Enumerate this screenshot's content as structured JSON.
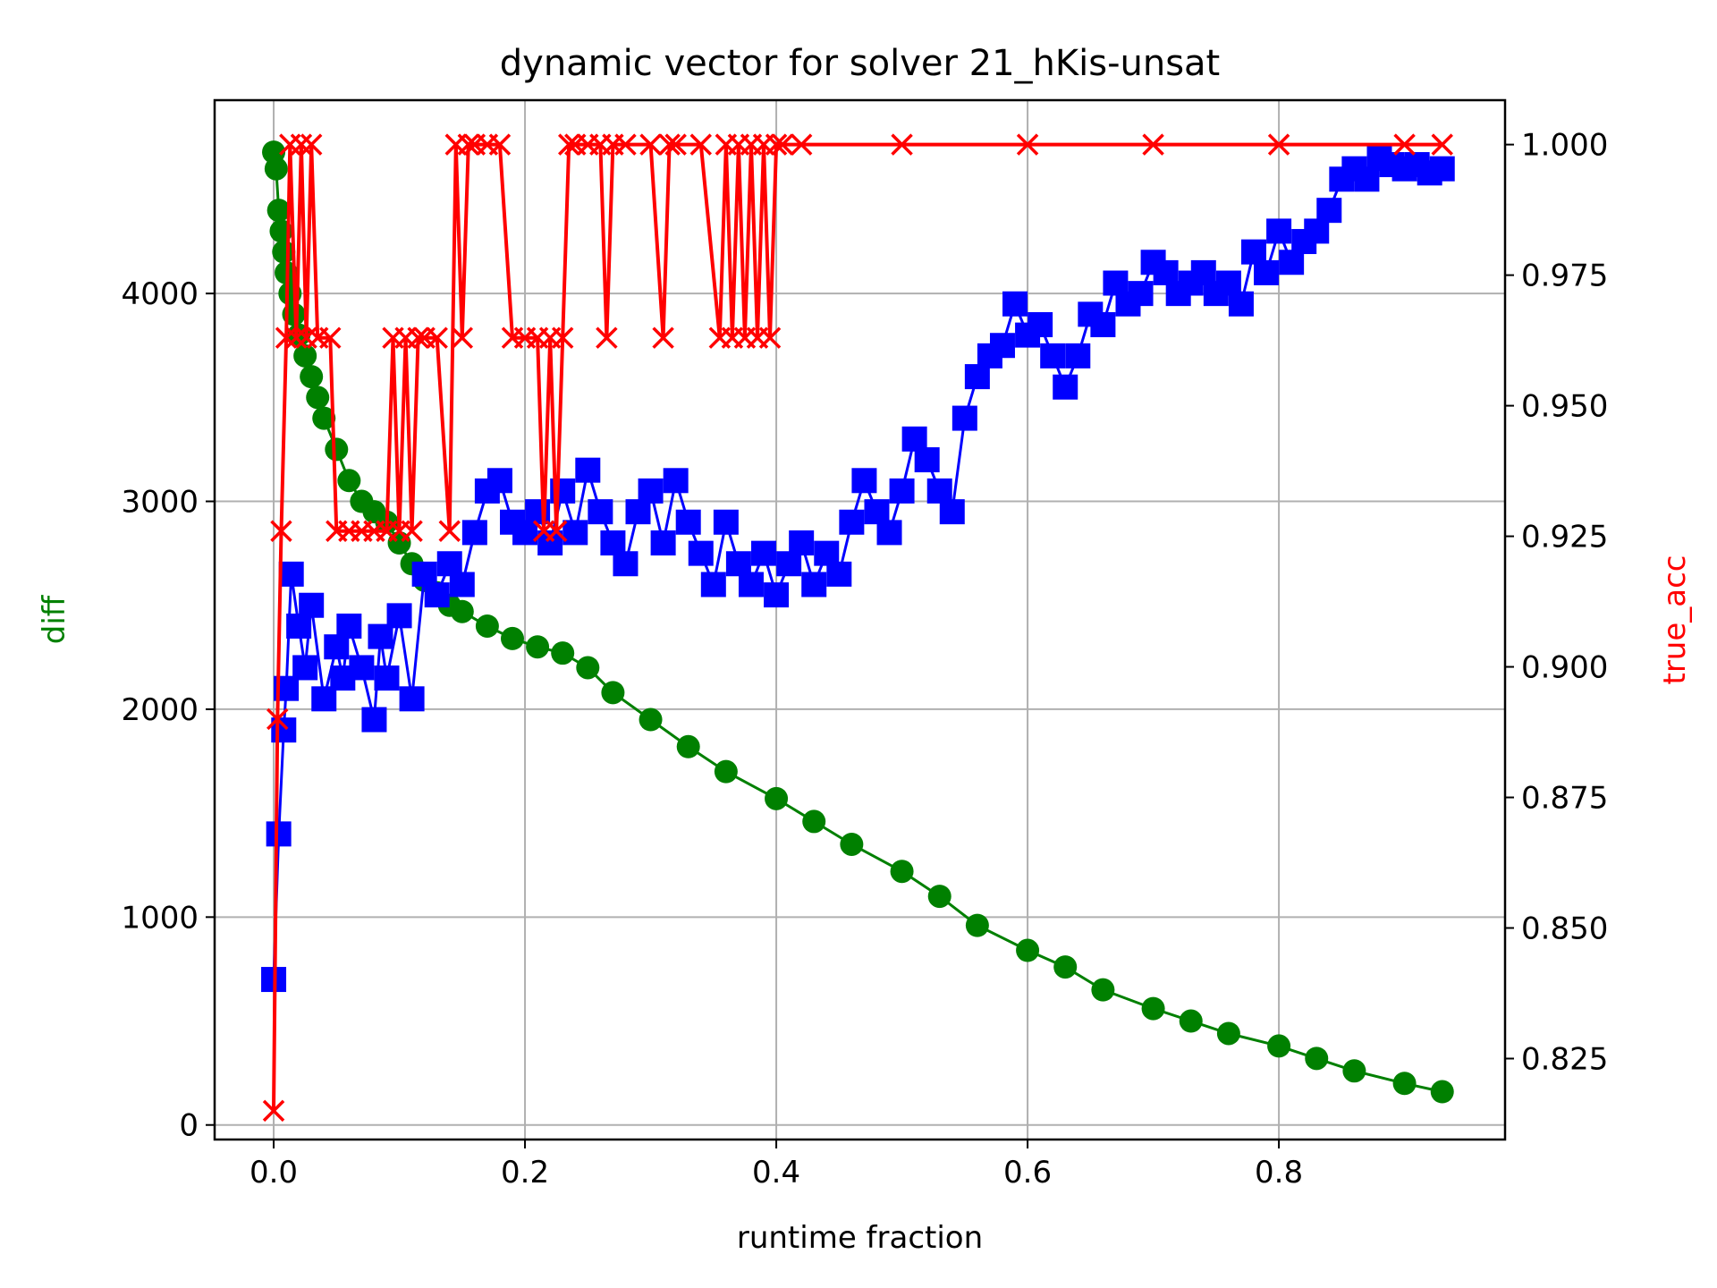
{
  "chart_data": {
    "type": "line",
    "title": "dynamic vector for solver 21_hKis-unsat",
    "xlabel": "runtime fraction",
    "ylabel_left": "diff",
    "ylabel_right": "true_acc",
    "xlim": [
      -0.047,
      0.98
    ],
    "ylim_left": [
      -70,
      4930
    ],
    "ylim_right": [
      0.8095,
      1.0085
    ],
    "x_ticks": [
      "0.0",
      "0.2",
      "0.4",
      "0.6",
      "0.8"
    ],
    "x_tick_values": [
      0.0,
      0.2,
      0.4,
      0.6,
      0.8
    ],
    "y_left_ticks": [
      "0",
      "1000",
      "2000",
      "3000",
      "4000"
    ],
    "y_left_tick_values": [
      0,
      1000,
      2000,
      3000,
      4000
    ],
    "y_right_ticks": [
      "0.825",
      "0.850",
      "0.875",
      "0.900",
      "0.925",
      "0.950",
      "0.975",
      "1.000"
    ],
    "y_right_tick_values": [
      0.825,
      0.85,
      0.875,
      0.9,
      0.925,
      0.95,
      0.975,
      1.0
    ],
    "grid": true,
    "colors": {
      "green_series": "#008000",
      "blue_series": "#0000ff",
      "red_series": "#ff0000",
      "ylabel_left": "#008000",
      "ylabel_right": "#ff0000"
    },
    "series": [
      {
        "axis": "left",
        "marker": "circle",
        "color": "#008000",
        "x": [
          0.0,
          0.002,
          0.004,
          0.006,
          0.008,
          0.01,
          0.013,
          0.016,
          0.02,
          0.025,
          0.03,
          0.035,
          0.04,
          0.05,
          0.06,
          0.07,
          0.08,
          0.09,
          0.1,
          0.11,
          0.12,
          0.13,
          0.14,
          0.15,
          0.17,
          0.19,
          0.21,
          0.23,
          0.25,
          0.27,
          0.3,
          0.33,
          0.36,
          0.4,
          0.43,
          0.46,
          0.5,
          0.53,
          0.56,
          0.6,
          0.63,
          0.66,
          0.7,
          0.73,
          0.76,
          0.8,
          0.83,
          0.86,
          0.9,
          0.93
        ],
        "y": [
          4680,
          4600,
          4400,
          4300,
          4200,
          4100,
          4000,
          3900,
          3800,
          3700,
          3600,
          3500,
          3400,
          3250,
          3100,
          3000,
          2950,
          2900,
          2800,
          2700,
          2620,
          2560,
          2500,
          2470,
          2400,
          2340,
          2300,
          2270,
          2200,
          2080,
          1950,
          1820,
          1700,
          1570,
          1460,
          1350,
          1220,
          1100,
          960,
          840,
          760,
          650,
          560,
          500,
          440,
          380,
          320,
          260,
          200,
          160
        ]
      },
      {
        "axis": "left",
        "marker": "square",
        "color": "#0000ff",
        "x": [
          0.0,
          0.004,
          0.008,
          0.01,
          0.014,
          0.02,
          0.025,
          0.03,
          0.04,
          0.05,
          0.055,
          0.06,
          0.07,
          0.08,
          0.085,
          0.09,
          0.1,
          0.11,
          0.12,
          0.13,
          0.14,
          0.15,
          0.16,
          0.17,
          0.18,
          0.19,
          0.2,
          0.21,
          0.22,
          0.23,
          0.24,
          0.25,
          0.26,
          0.27,
          0.28,
          0.29,
          0.3,
          0.31,
          0.32,
          0.33,
          0.34,
          0.35,
          0.36,
          0.37,
          0.38,
          0.39,
          0.4,
          0.41,
          0.42,
          0.43,
          0.44,
          0.45,
          0.46,
          0.47,
          0.48,
          0.49,
          0.5,
          0.51,
          0.52,
          0.53,
          0.54,
          0.55,
          0.56,
          0.57,
          0.58,
          0.59,
          0.6,
          0.61,
          0.62,
          0.63,
          0.64,
          0.65,
          0.66,
          0.67,
          0.68,
          0.69,
          0.7,
          0.71,
          0.72,
          0.73,
          0.74,
          0.75,
          0.76,
          0.77,
          0.78,
          0.79,
          0.8,
          0.81,
          0.82,
          0.83,
          0.84,
          0.85,
          0.86,
          0.87,
          0.88,
          0.89,
          0.9,
          0.91,
          0.92,
          0.93
        ],
        "y": [
          700,
          1400,
          1900,
          2100,
          2650,
          2400,
          2200,
          2500,
          2050,
          2300,
          2150,
          2400,
          2200,
          1950,
          2350,
          2150,
          2450,
          2050,
          2650,
          2550,
          2700,
          2600,
          2850,
          3050,
          3100,
          2900,
          2850,
          2950,
          2800,
          3050,
          2850,
          3150,
          2950,
          2800,
          2700,
          2950,
          3050,
          2800,
          3100,
          2900,
          2750,
          2600,
          2900,
          2700,
          2600,
          2750,
          2550,
          2700,
          2800,
          2600,
          2750,
          2650,
          2900,
          3100,
          2950,
          2850,
          3050,
          3300,
          3200,
          3050,
          2950,
          3400,
          3600,
          3700,
          3750,
          3950,
          3800,
          3850,
          3700,
          3550,
          3700,
          3900,
          3850,
          4050,
          3950,
          4000,
          4150,
          4100,
          4000,
          4050,
          4100,
          4000,
          4050,
          3950,
          4200,
          4100,
          4300,
          4150,
          4250,
          4300,
          4400,
          4550,
          4600,
          4550,
          4650,
          4620,
          4600,
          4620,
          4580,
          4600
        ]
      },
      {
        "axis": "right",
        "marker": "x",
        "color": "#ff0000",
        "x": [
          0.0,
          0.003,
          0.006,
          0.01,
          0.013,
          0.018,
          0.022,
          0.026,
          0.03,
          0.035,
          0.045,
          0.05,
          0.06,
          0.07,
          0.08,
          0.09,
          0.095,
          0.1,
          0.105,
          0.11,
          0.115,
          0.12,
          0.13,
          0.14,
          0.145,
          0.15,
          0.155,
          0.16,
          0.17,
          0.18,
          0.19,
          0.2,
          0.21,
          0.215,
          0.22,
          0.225,
          0.23,
          0.235,
          0.24,
          0.25,
          0.26,
          0.265,
          0.27,
          0.28,
          0.3,
          0.31,
          0.315,
          0.32,
          0.34,
          0.355,
          0.36,
          0.365,
          0.37,
          0.375,
          0.38,
          0.385,
          0.39,
          0.395,
          0.4,
          0.405,
          0.42,
          0.5,
          0.6,
          0.7,
          0.8,
          0.9,
          0.93
        ],
        "y": [
          0.815,
          0.89,
          0.926,
          0.963,
          1.0,
          0.963,
          1.0,
          0.963,
          1.0,
          0.963,
          0.963,
          0.926,
          0.926,
          0.926,
          0.926,
          0.926,
          0.963,
          0.926,
          0.963,
          0.926,
          0.963,
          0.963,
          0.963,
          0.926,
          1.0,
          0.963,
          1.0,
          1.0,
          1.0,
          1.0,
          0.963,
          0.963,
          0.963,
          0.926,
          0.963,
          0.926,
          0.963,
          1.0,
          1.0,
          1.0,
          1.0,
          0.963,
          1.0,
          1.0,
          1.0,
          0.963,
          1.0,
          1.0,
          1.0,
          0.963,
          1.0,
          0.963,
          1.0,
          0.963,
          1.0,
          0.963,
          1.0,
          0.963,
          1.0,
          1.0,
          1.0,
          1.0,
          1.0,
          1.0,
          1.0,
          1.0,
          1.0
        ]
      }
    ]
  }
}
